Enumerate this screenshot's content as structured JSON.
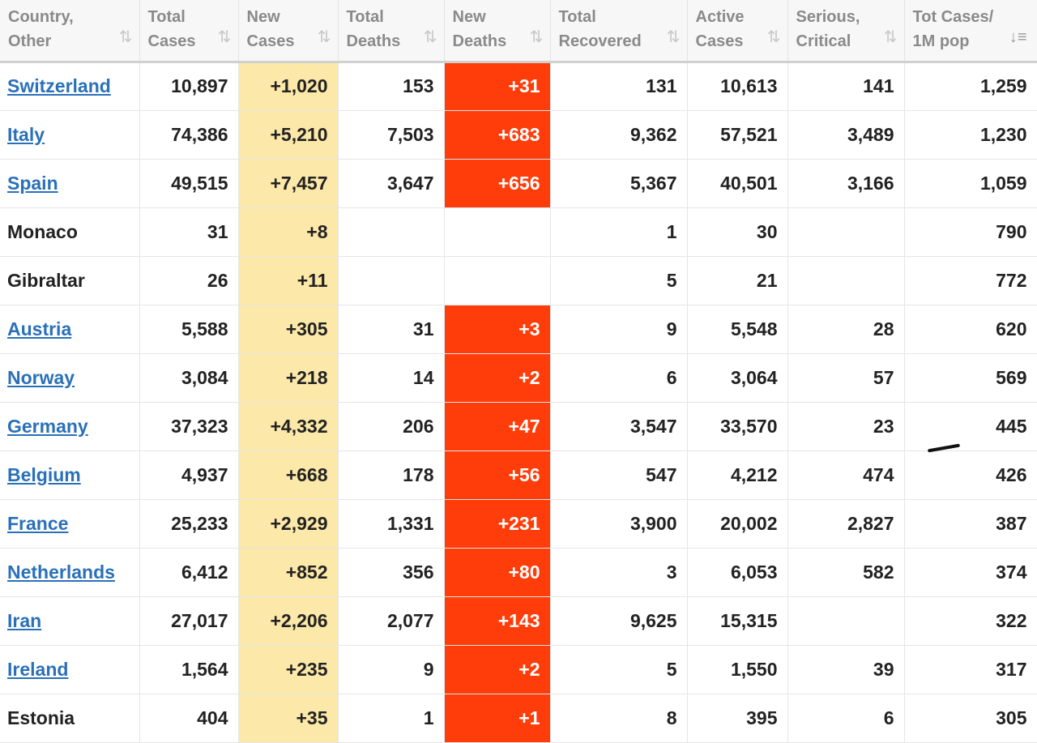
{
  "table": {
    "headers": [
      {
        "id": "country",
        "line1": "Country,",
        "line2": "Other",
        "sort": "⇅"
      },
      {
        "id": "total-cases",
        "line1": "Total",
        "line2": "Cases",
        "sort": "⇅"
      },
      {
        "id": "new-cases",
        "line1": "New",
        "line2": "Cases",
        "sort": "⇅"
      },
      {
        "id": "total-deaths",
        "line1": "Total",
        "line2": "Deaths",
        "sort": "⇅"
      },
      {
        "id": "new-deaths",
        "line1": "New",
        "line2": "Deaths",
        "sort": "⇅"
      },
      {
        "id": "total-recovered",
        "line1": "Total",
        "line2": "Recovered",
        "sort": "⇅"
      },
      {
        "id": "active-cases",
        "line1": "Active",
        "line2": "Cases",
        "sort": "⇅"
      },
      {
        "id": "serious-critical",
        "line1": "Serious,",
        "line2": "Critical",
        "sort": "⇅"
      },
      {
        "id": "tot-cases-1m",
        "line1": "Tot Cases/",
        "line2": "1M pop",
        "sort": "↓≡"
      }
    ],
    "rows": [
      {
        "country": "Switzerland",
        "link": true,
        "total_cases": "10,897",
        "new_cases": "+1,020",
        "total_deaths": "153",
        "new_deaths": "+31",
        "total_recovered": "131",
        "active_cases": "10,613",
        "serious_critical": "141",
        "tot_cases_1m": "1,259"
      },
      {
        "country": "Italy",
        "link": true,
        "total_cases": "74,386",
        "new_cases": "+5,210",
        "total_deaths": "7,503",
        "new_deaths": "+683",
        "total_recovered": "9,362",
        "active_cases": "57,521",
        "serious_critical": "3,489",
        "tot_cases_1m": "1,230"
      },
      {
        "country": "Spain",
        "link": true,
        "total_cases": "49,515",
        "new_cases": "+7,457",
        "total_deaths": "3,647",
        "new_deaths": "+656",
        "total_recovered": "5,367",
        "active_cases": "40,501",
        "serious_critical": "3,166",
        "tot_cases_1m": "1,059"
      },
      {
        "country": "Monaco",
        "link": false,
        "total_cases": "31",
        "new_cases": "+8",
        "total_deaths": "",
        "new_deaths": "",
        "total_recovered": "1",
        "active_cases": "30",
        "serious_critical": "",
        "tot_cases_1m": "790"
      },
      {
        "country": "Gibraltar",
        "link": false,
        "total_cases": "26",
        "new_cases": "+11",
        "total_deaths": "",
        "new_deaths": "",
        "total_recovered": "5",
        "active_cases": "21",
        "serious_critical": "",
        "tot_cases_1m": "772"
      },
      {
        "country": "Austria",
        "link": true,
        "total_cases": "5,588",
        "new_cases": "+305",
        "total_deaths": "31",
        "new_deaths": "+3",
        "total_recovered": "9",
        "active_cases": "5,548",
        "serious_critical": "28",
        "tot_cases_1m": "620"
      },
      {
        "country": "Norway",
        "link": true,
        "total_cases": "3,084",
        "new_cases": "+218",
        "total_deaths": "14",
        "new_deaths": "+2",
        "total_recovered": "6",
        "active_cases": "3,064",
        "serious_critical": "57",
        "tot_cases_1m": "569"
      },
      {
        "country": "Germany",
        "link": true,
        "total_cases": "37,323",
        "new_cases": "+4,332",
        "total_deaths": "206",
        "new_deaths": "+47",
        "total_recovered": "3,547",
        "active_cases": "33,570",
        "serious_critical": "23",
        "tot_cases_1m": "445"
      },
      {
        "country": "Belgium",
        "link": true,
        "total_cases": "4,937",
        "new_cases": "+668",
        "total_deaths": "178",
        "new_deaths": "+56",
        "total_recovered": "547",
        "active_cases": "4,212",
        "serious_critical": "474",
        "tot_cases_1m": "426"
      },
      {
        "country": "France",
        "link": true,
        "total_cases": "25,233",
        "new_cases": "+2,929",
        "total_deaths": "1,331",
        "new_deaths": "+231",
        "total_recovered": "3,900",
        "active_cases": "20,002",
        "serious_critical": "2,827",
        "tot_cases_1m": "387"
      },
      {
        "country": "Netherlands",
        "link": true,
        "total_cases": "6,412",
        "new_cases": "+852",
        "total_deaths": "356",
        "new_deaths": "+80",
        "total_recovered": "3",
        "active_cases": "6,053",
        "serious_critical": "582",
        "tot_cases_1m": "374"
      },
      {
        "country": "Iran",
        "link": true,
        "total_cases": "27,017",
        "new_cases": "+2,206",
        "total_deaths": "2,077",
        "new_deaths": "+143",
        "total_recovered": "9,625",
        "active_cases": "15,315",
        "serious_critical": "",
        "tot_cases_1m": "322"
      },
      {
        "country": "Ireland",
        "link": true,
        "total_cases": "1,564",
        "new_cases": "+235",
        "total_deaths": "9",
        "new_deaths": "+2",
        "total_recovered": "5",
        "active_cases": "1,550",
        "serious_critical": "39",
        "tot_cases_1m": "317"
      },
      {
        "country": "Estonia",
        "link": false,
        "total_cases": "404",
        "new_cases": "+35",
        "total_deaths": "1",
        "new_deaths": "+1",
        "total_recovered": "8",
        "active_cases": "395",
        "serious_critical": "6",
        "tot_cases_1m": "305"
      }
    ]
  },
  "colors": {
    "header_bg": "#f7f7f7",
    "header_text": "#8a8a8a",
    "new_cases_bg": "#fce8a8",
    "new_deaths_bg": "#ff3d0a",
    "link": "#2a70b8",
    "text": "#222222"
  }
}
